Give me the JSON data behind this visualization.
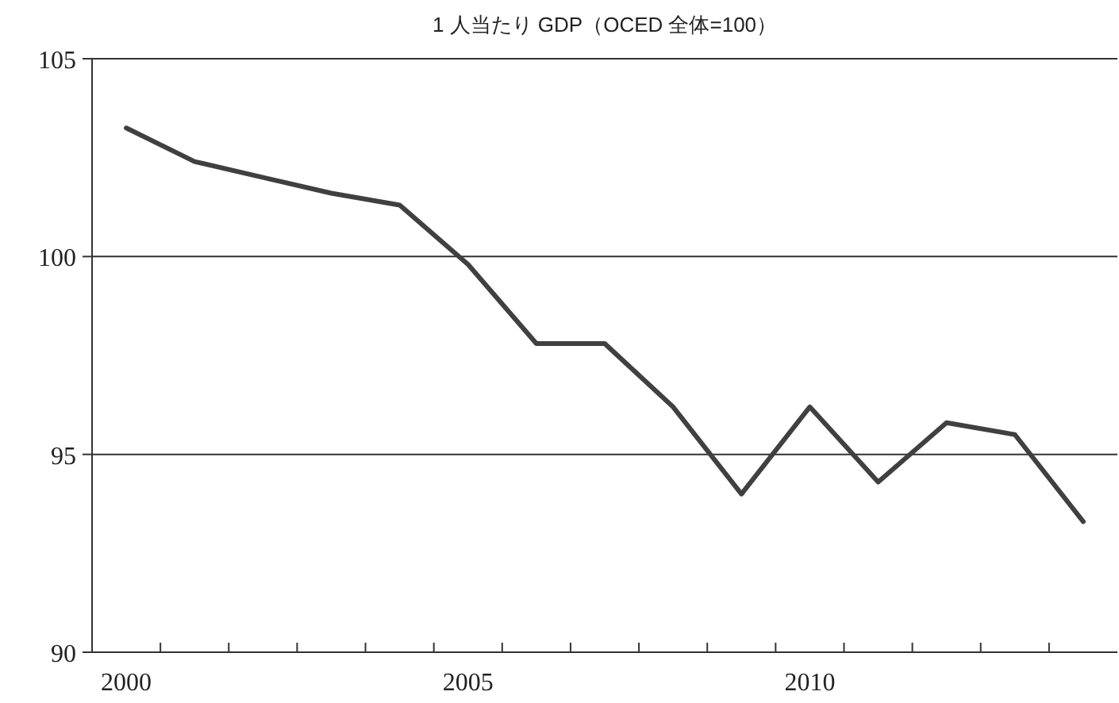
{
  "chart_data": {
    "type": "line",
    "title": "1 人当たり GDP（OCED 全体=100）",
    "categories": [
      "2000",
      null,
      null,
      null,
      null,
      "2005",
      null,
      null,
      null,
      null,
      "2010",
      null,
      null,
      null,
      null
    ],
    "series": [
      {
        "color": "#404040",
        "values": [
          103.25,
          102.4,
          102.0,
          101.6,
          101.3,
          99.8,
          97.8,
          97.8,
          96.2,
          94.0,
          96.2,
          94.3,
          95.8,
          95.5,
          93.3
        ]
      }
    ],
    "ylim": [
      90,
      105
    ],
    "yticks": [
      90,
      95,
      100,
      105
    ],
    "grid": "y",
    "marker": "none",
    "line_style": "solid"
  }
}
